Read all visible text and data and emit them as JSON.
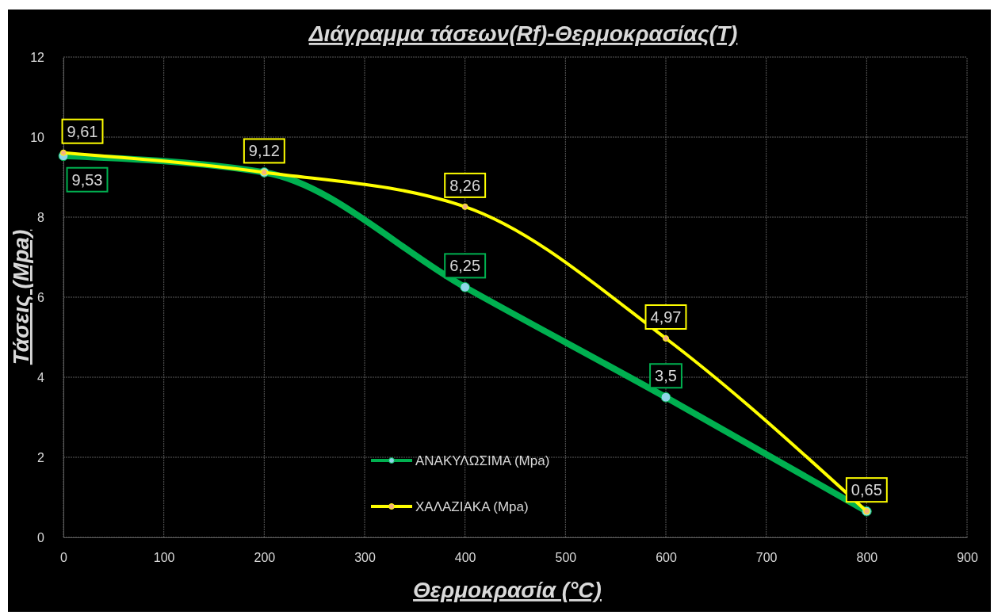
{
  "chart_data": {
    "type": "line",
    "title": "Διάγραμμα τάσεων(Rf)-Θερμοκρασίας(T)",
    "xlabel": "Θερμοκρασία (°C)",
    "ylabel": "Τάσεις (Mpa)",
    "x": [
      0,
      200,
      400,
      600,
      800
    ],
    "series": [
      {
        "name": "ΑΝΑΚΥΛΩΣΙΜΑ (Mpa)",
        "color": "#00b050",
        "values": [
          9.53,
          9.12,
          6.25,
          3.5,
          0.65
        ],
        "value_labels": [
          "9,53",
          null,
          "6,25",
          "3,5",
          null
        ]
      },
      {
        "name": "ΧΑΛΑΖΙΑΚΑ (Mpa)",
        "color": "#ffff00",
        "values": [
          9.61,
          9.12,
          8.26,
          4.97,
          0.65
        ],
        "value_labels": [
          "9,61",
          "9,12",
          "8,26",
          "4,97",
          "0,65"
        ]
      }
    ],
    "xlim": [
      0,
      900
    ],
    "xticks": [
      0,
      100,
      200,
      300,
      400,
      500,
      600,
      700,
      800,
      900
    ],
    "ylim": [
      0,
      12
    ],
    "yticks": [
      0,
      2,
      4,
      6,
      8,
      10,
      12
    ],
    "grid": true,
    "legend": "bottom",
    "marker": "circle",
    "line_style": "solid"
  }
}
